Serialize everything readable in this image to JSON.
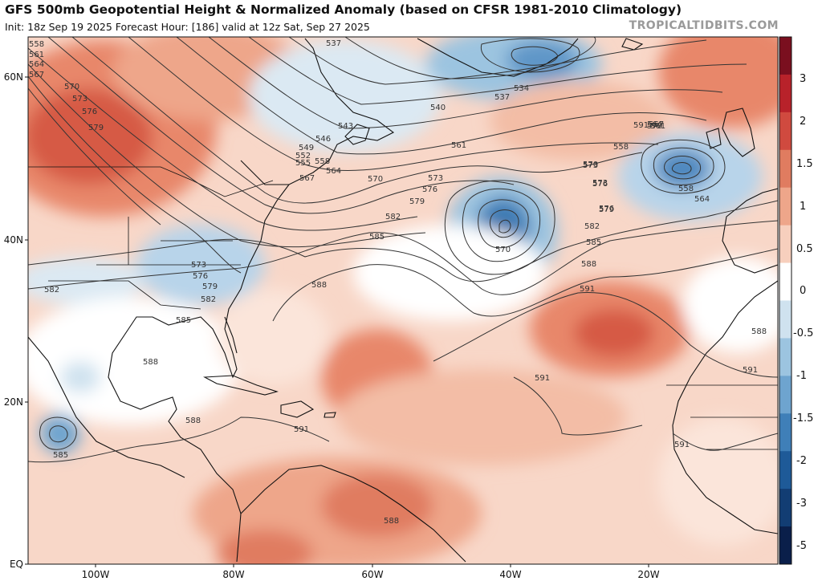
{
  "header": {
    "title": "GFS 500mb Geopotential Height & Normalized Anomaly (based on CFSR 1981-2010 Climatology)",
    "subtitle": "Init: 18z Sep 19 2025   Forecast Hour: [186]   valid at 12z Sat, Sep 27 2025",
    "credit": "TROPICALTIDBITS.COM"
  },
  "map": {
    "lat_labels": [
      "60N",
      "40N",
      "20N",
      "EQ"
    ],
    "lon_labels": [
      "100W",
      "80W",
      "60W",
      "40W",
      "20W"
    ],
    "contour_labels": [
      "537",
      "534",
      "537",
      "540",
      "543",
      "546",
      "549",
      "552",
      "555",
      "558",
      "561",
      "564",
      "567",
      "570",
      "573",
      "576",
      "579",
      "582",
      "585",
      "588",
      "591",
      "558",
      "561",
      "564",
      "567",
      "570",
      "573",
      "576",
      "579",
      "558",
      "564",
      "570",
      "573",
      "576",
      "579",
      "582",
      "585",
      "588",
      "591",
      "588",
      "591",
      "588",
      "591",
      "588",
      "591",
      "582",
      "585",
      "573",
      "576",
      "579",
      "582",
      "585",
      "588",
      "591",
      "570",
      "567",
      "564",
      "561",
      "558",
      "570",
      "573",
      "576",
      "579"
    ],
    "colors": {
      "land_outline": "#111111",
      "contour": "#333333"
    }
  },
  "colorbar": {
    "labels": [
      "3",
      "2",
      "1.5",
      "1",
      "0.5",
      "0",
      "-0.5",
      "-1",
      "-1.5",
      "-2",
      "-3",
      "-5"
    ],
    "colors": [
      "#7a0f1f",
      "#b8222a",
      "#d04a3f",
      "#e07c60",
      "#eea68a",
      "#f7cfbd",
      "#ffffff",
      "#cfe2ef",
      "#9cc4e0",
      "#6ea4cf",
      "#3f7fb8",
      "#1e5a98",
      "#123d73",
      "#0a1f4a"
    ]
  }
}
